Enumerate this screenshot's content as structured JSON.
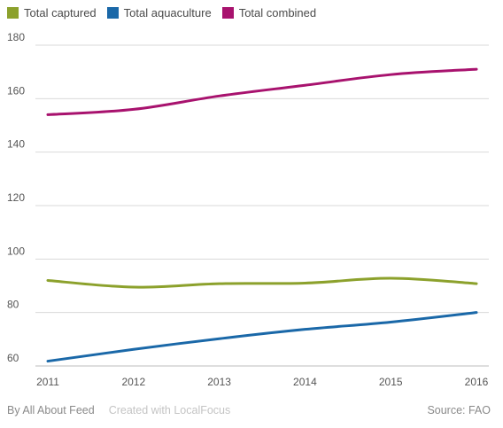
{
  "legend": [
    {
      "label": "Total captured",
      "color": "#8ca12c"
    },
    {
      "label": "Total aquaculture",
      "color": "#1a68a8"
    },
    {
      "label": "Total combined",
      "color": "#a8126e"
    }
  ],
  "footer": {
    "credit": "By All About Feed",
    "created": "Created with LocalFocus",
    "source": "Source:  FAO"
  },
  "chart_data": {
    "type": "line",
    "x": [
      2011,
      2012,
      2013,
      2014,
      2015,
      2016
    ],
    "series": [
      {
        "name": "Total captured",
        "color": "#8ca12c",
        "values": [
          92,
          89.5,
          90.8,
          91,
          92.8,
          90.8
        ]
      },
      {
        "name": "Total aquaculture",
        "color": "#1a68a8",
        "values": [
          61.8,
          66.2,
          70.2,
          73.7,
          76.4,
          80
        ]
      },
      {
        "name": "Total combined",
        "color": "#a8126e",
        "values": [
          154,
          156,
          161,
          165,
          169,
          171
        ]
      }
    ],
    "yticks": [
      60,
      80,
      100,
      120,
      140,
      160,
      180
    ],
    "ylim": [
      60,
      180
    ],
    "grid": true,
    "legend_position": "top-left",
    "title": "",
    "xlabel": "",
    "ylabel": ""
  }
}
